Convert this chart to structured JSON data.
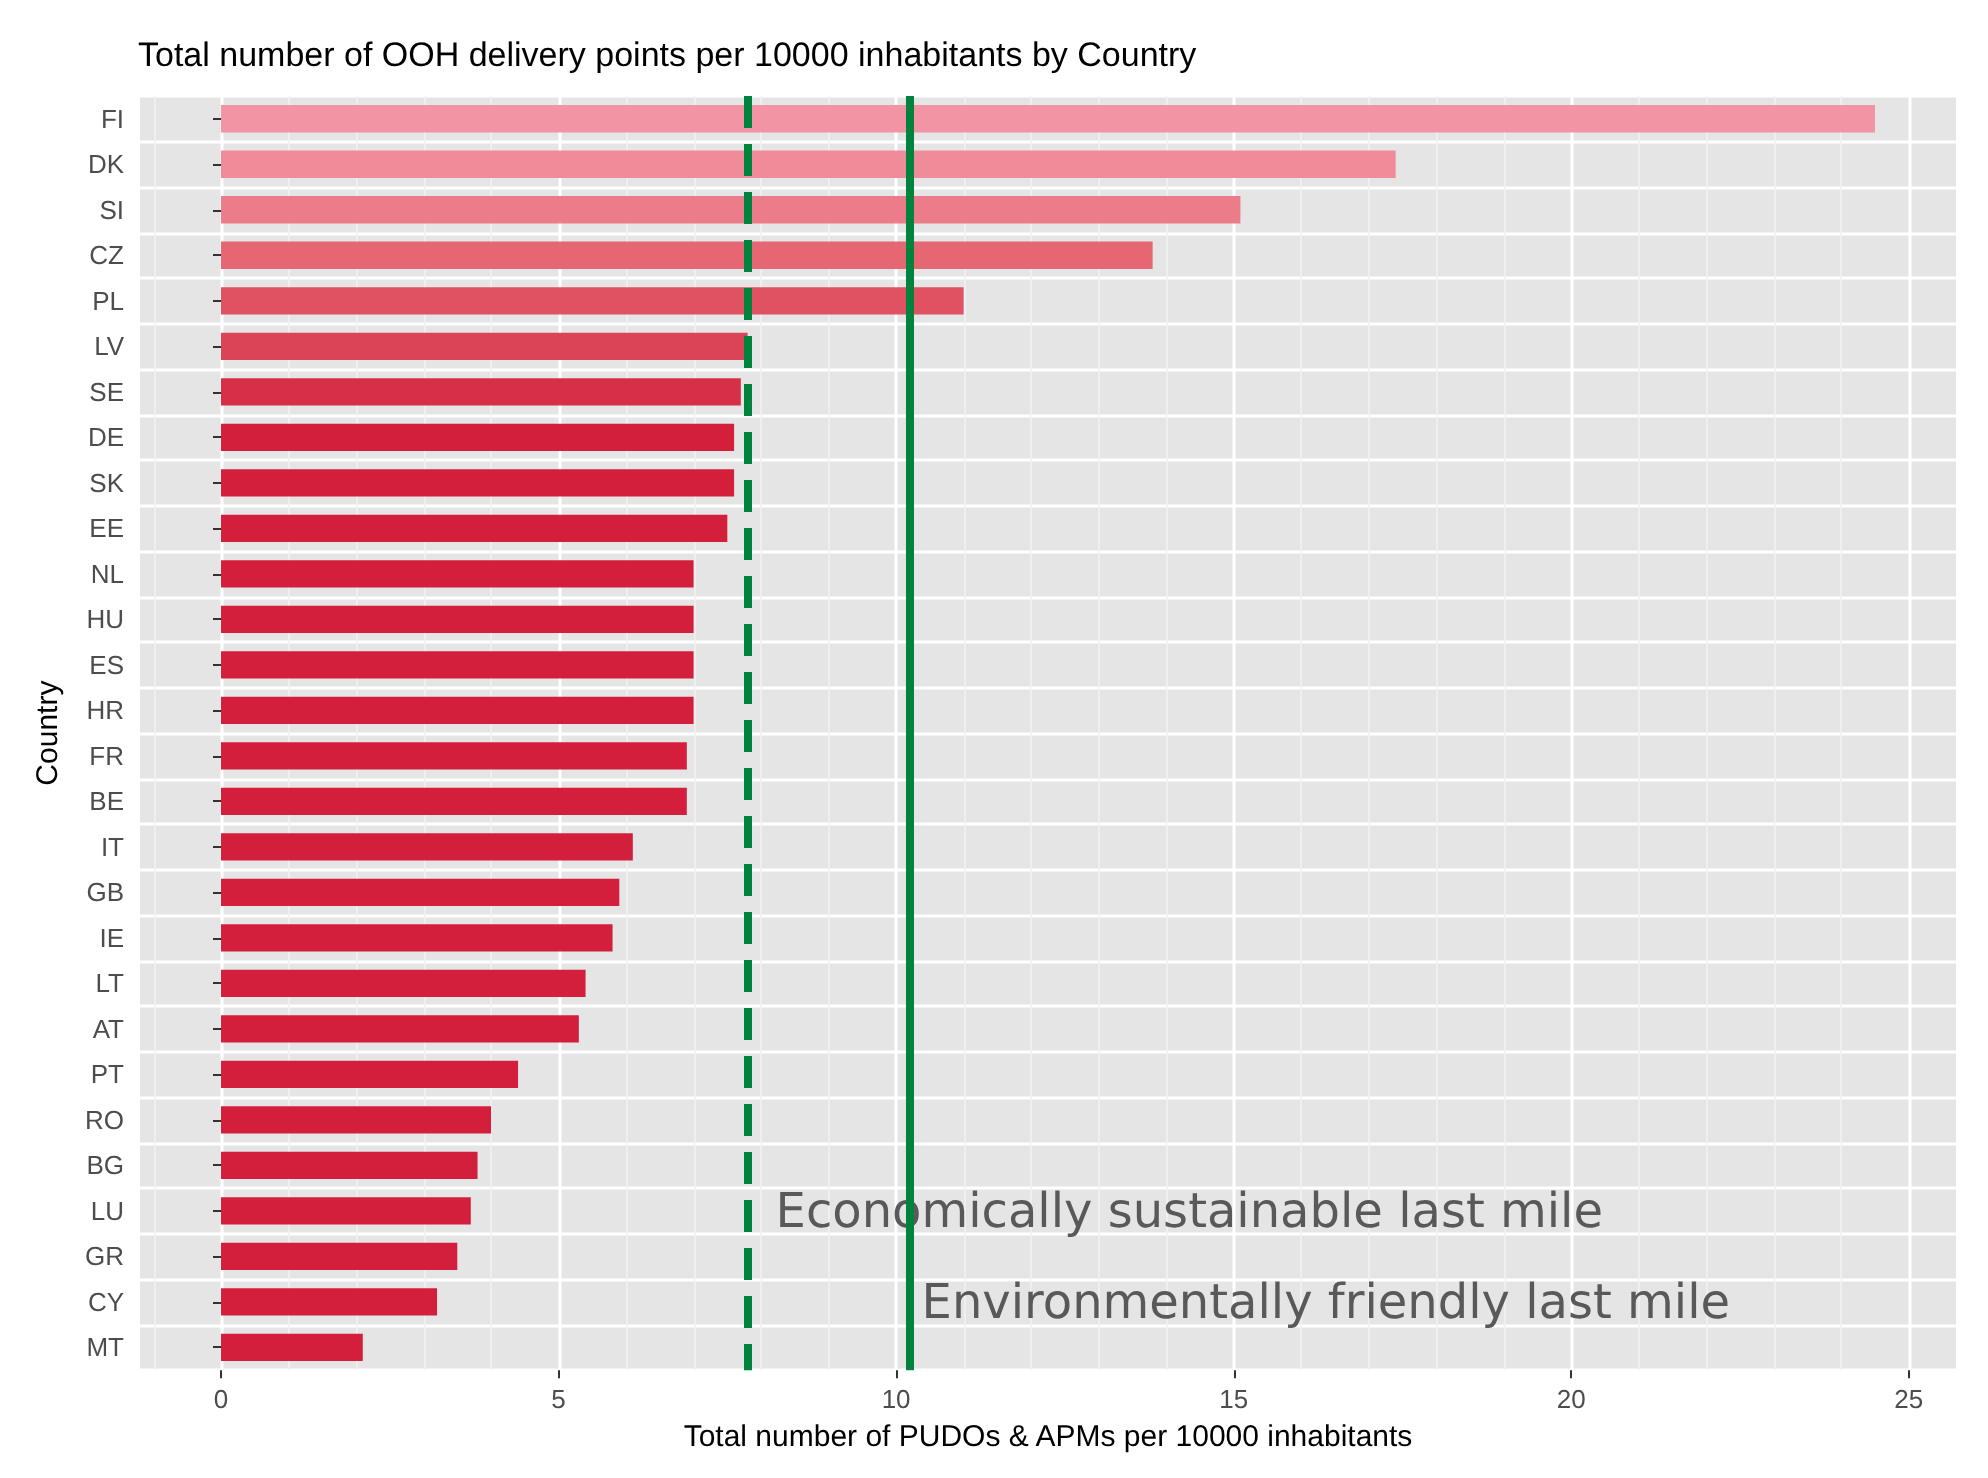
{
  "chart_data": {
    "type": "bar",
    "orientation": "horizontal",
    "title": "Total number of OOH delivery points per 10000 inhabitants by Country",
    "xlabel": "Total number of PUDOs & APMs per 10000 inhabitants",
    "ylabel": "Country",
    "categories": [
      "FI",
      "DK",
      "SI",
      "CZ",
      "PL",
      "LV",
      "SE",
      "DE",
      "SK",
      "EE",
      "NL",
      "HU",
      "ES",
      "HR",
      "FR",
      "BE",
      "IT",
      "GB",
      "IE",
      "LT",
      "AT",
      "PT",
      "RO",
      "BG",
      "LU",
      "GR",
      "CY",
      "MT"
    ],
    "values": [
      24.5,
      17.4,
      15.1,
      13.8,
      11.0,
      7.8,
      7.7,
      7.6,
      7.6,
      7.5,
      7.0,
      7.0,
      7.0,
      7.0,
      6.9,
      6.9,
      6.1,
      5.9,
      5.8,
      5.4,
      5.3,
      4.4,
      4.0,
      3.8,
      3.7,
      3.5,
      3.2,
      2.1
    ],
    "colors": [
      "#f394a4",
      "#f08b9a",
      "#ec7c8a",
      "#e66674",
      "#e05262",
      "#db4356",
      "#d72f48",
      "#d41f3c",
      "#d41f3c",
      "#d41f3c",
      "#d41f3c",
      "#d41f3c",
      "#d41f3c",
      "#d41f3c",
      "#d41f3c",
      "#d41f3c",
      "#d41f3c",
      "#d41f3c",
      "#d41f3c",
      "#d41f3c",
      "#d41f3c",
      "#d41f3c",
      "#d41f3c",
      "#d41f3c",
      "#d41f3c",
      "#d41f3c",
      "#d41f3c",
      "#d41f3c"
    ],
    "xlim": [
      -1.2,
      25.7
    ],
    "xticks": [
      0,
      5,
      10,
      15,
      20,
      25
    ],
    "grid": true,
    "ref_lines": [
      {
        "axis": "x",
        "value": 7.8,
        "label": "Economically sustainable last mile",
        "color": "#00843d",
        "line_style": "dashed"
      },
      {
        "axis": "x",
        "value": 10.2,
        "label": "Environmentally friendly last mile",
        "color": "#00843d",
        "line_style": "solid"
      }
    ]
  }
}
